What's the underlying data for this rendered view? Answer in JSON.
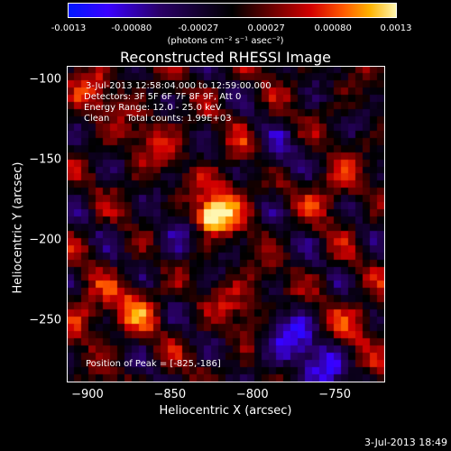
{
  "colorbar": {
    "ticks": [
      "-0.0013",
      "-0.00080",
      "-0.00027",
      "0.00027",
      "0.00080",
      "0.0013"
    ],
    "tick_values": [
      -0.0013,
      -0.0008,
      -0.00027,
      0.00027,
      0.0008,
      0.0013
    ],
    "units": "(photons cm⁻² s⁻¹ asec⁻²)"
  },
  "overlay": {
    "line1": "3-Jul-2013 12:58:04.000 to 12:59:00.000",
    "line2": "Detectors: 3F 5F 6F 7F 8F 9F, Att 0",
    "line3": "Energy Range: 12.0 - 25.0 keV",
    "line4": "Clean      Total counts: 1.99E+03",
    "peak": "Position of Peak = [-825,-186]"
  },
  "timestamp": "3-Jul-2013 18:49",
  "chart_data": {
    "type": "heatmap",
    "title": "Reconstructed RHESSI Image",
    "xlabel": "Heliocentric X (arcsec)",
    "ylabel": "Heliocentric Y (arcsec)",
    "xlim": [
      -912,
      -720
    ],
    "ylim": [
      -288,
      -92
    ],
    "x_ticks": [
      -900,
      -850,
      -800,
      -750
    ],
    "x_tick_labels": [
      "−900",
      "−850",
      "−800",
      "−750"
    ],
    "y_ticks": [
      -100,
      -150,
      -200,
      -250
    ],
    "y_tick_labels": [
      "−100",
      "−150",
      "−200",
      "−250"
    ],
    "colorbar_range": [
      -0.0013,
      0.0013
    ],
    "peak_position": [
      -825,
      -186
    ],
    "peak_value": 0.0013,
    "sources": [
      {
        "x": -825,
        "y": -186,
        "value": 0.0013
      },
      {
        "x": -815,
        "y": -175,
        "value": 0.0008
      },
      {
        "x": -870,
        "y": -242,
        "value": 0.0006
      },
      {
        "x": -895,
        "y": -108,
        "value": 0.0005
      },
      {
        "x": -860,
        "y": -138,
        "value": 0.0004
      },
      {
        "x": -752,
        "y": -168,
        "value": 0.0005
      },
      {
        "x": -735,
        "y": -250,
        "value": 0.0005
      },
      {
        "x": -805,
        "y": -240,
        "value": 0.0005
      },
      {
        "x": -800,
        "y": -145,
        "value": 0.0004
      },
      {
        "x": -900,
        "y": -245,
        "value": 0.0005
      },
      {
        "x": -780,
        "y": -260,
        "value": -0.0008
      },
      {
        "x": -790,
        "y": -150,
        "value": -0.0007
      },
      {
        "x": -760,
        "y": -280,
        "value": -0.0008
      },
      {
        "x": -850,
        "y": -200,
        "value": -0.0004
      }
    ]
  }
}
